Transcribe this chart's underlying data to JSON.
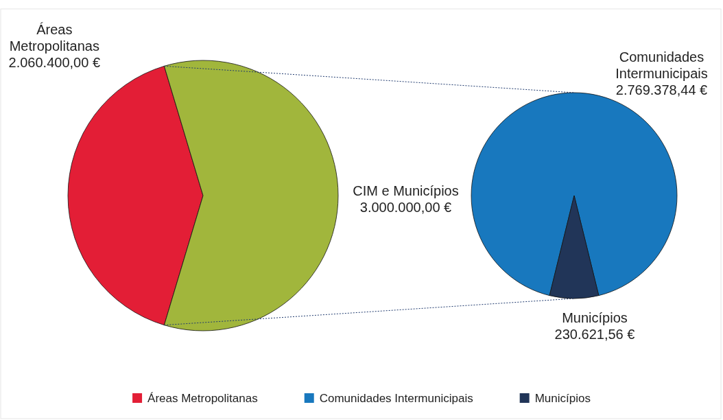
{
  "chart_data": [
    {
      "type": "pie",
      "categories": [
        "Áreas Metropolitanas",
        "CIM e Municípios"
      ],
      "values": [
        2060400,
        3000000
      ],
      "colors": [
        "#e31e36",
        "#a1b63c"
      ],
      "value_labels": [
        "2.060.400,00 €",
        "3.000.000,00 €"
      ],
      "legend": "bottom"
    },
    {
      "type": "pie",
      "categories": [
        "Comunidades Intermunicipais",
        "Municípios"
      ],
      "values": [
        2769378.44,
        230621.56
      ],
      "colors": [
        "#1878be",
        "#213558"
      ],
      "value_labels": [
        "2.769.378,44 €",
        "230.621,56 €"
      ],
      "legend": "bottom"
    }
  ]
}
